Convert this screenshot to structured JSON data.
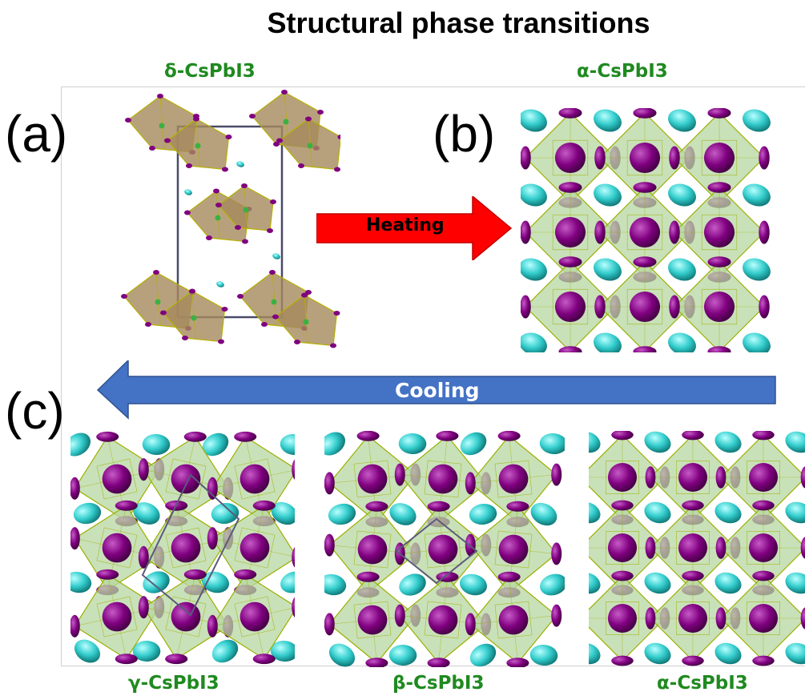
{
  "figure": {
    "title": "Structural phase transitions",
    "panels": {
      "a": {
        "letter": "(a)",
        "phase": "δ-CsPbI3"
      },
      "b": {
        "letter": "(b)",
        "phase": "α-CsPbI3"
      },
      "c": {
        "letter": "(c)",
        "phases": [
          "γ-CsPbI3",
          "β-CsPbI3",
          "α-CsPbI3"
        ]
      }
    },
    "arrows": {
      "heating": {
        "label": "Heating",
        "color": "#ff0000"
      },
      "cooling": {
        "label": "Cooling",
        "color": "#4472c4"
      }
    },
    "colors": {
      "iodine": "#800080",
      "cesium": "#33cccc",
      "octahedron_green": "#b7d7a0",
      "octahedron_brown": "#a58a5c",
      "phase_label": "#1f8a1f"
    }
  }
}
